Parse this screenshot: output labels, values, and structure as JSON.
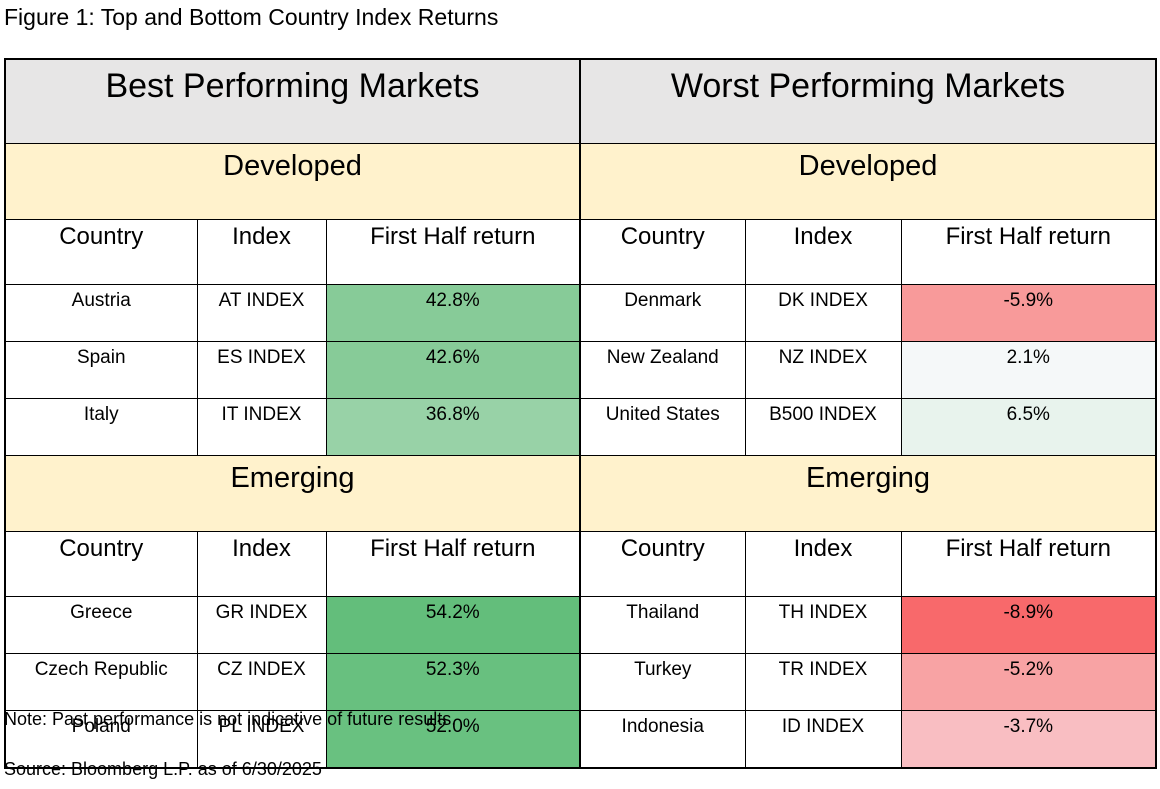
{
  "figure_title": "Figure 1: Top and Bottom Country Index Returns",
  "best_title": "Best Performing Markets",
  "worst_title": "Worst Performing Markets",
  "columns": {
    "country": "Country",
    "index": "Index",
    "return": "First Half return"
  },
  "sections": [
    {
      "label": "Developed",
      "best": [
        {
          "country": "Austria",
          "index": "AT INDEX",
          "return": "42.8%",
          "color": "#87cb98"
        },
        {
          "country": "Spain",
          "index": "ES INDEX",
          "return": "42.6%",
          "color": "#87cb98"
        },
        {
          "country": "Italy",
          "index": "IT INDEX",
          "return": "36.8%",
          "color": "#98d2a7"
        }
      ],
      "worst": [
        {
          "country": "Denmark",
          "index": "DK INDEX",
          "return": "-5.9%",
          "color": "#f89a9a"
        },
        {
          "country": "New Zealand",
          "index": "NZ INDEX",
          "return": "2.1%",
          "color": "#f5f8f9"
        },
        {
          "country": "United States",
          "index": "B500 INDEX",
          "return": "6.5%",
          "color": "#e8f3ed"
        }
      ]
    },
    {
      "label": "Emerging",
      "best": [
        {
          "country": "Greece",
          "index": "GR INDEX",
          "return": "54.2%",
          "color": "#63be7b"
        },
        {
          "country": "Czech Republic",
          "index": "CZ INDEX",
          "return": "52.3%",
          "color": "#68c07f"
        },
        {
          "country": "Poland",
          "index": "PL INDEX",
          "return": "52.0%",
          "color": "#69c180"
        }
      ],
      "worst": [
        {
          "country": "Thailand",
          "index": "TH INDEX",
          "return": "-8.9%",
          "color": "#f8696b"
        },
        {
          "country": "Turkey",
          "index": "TR INDEX",
          "return": "-5.2%",
          "color": "#f8a3a4"
        },
        {
          "country": "Indonesia",
          "index": "ID INDEX",
          "return": "-3.7%",
          "color": "#f9bec2"
        }
      ]
    }
  ],
  "note": "Note: Past performance is not indicative of future results.",
  "source": "Source: Bloomberg L.P. as of 6/30/2025"
}
